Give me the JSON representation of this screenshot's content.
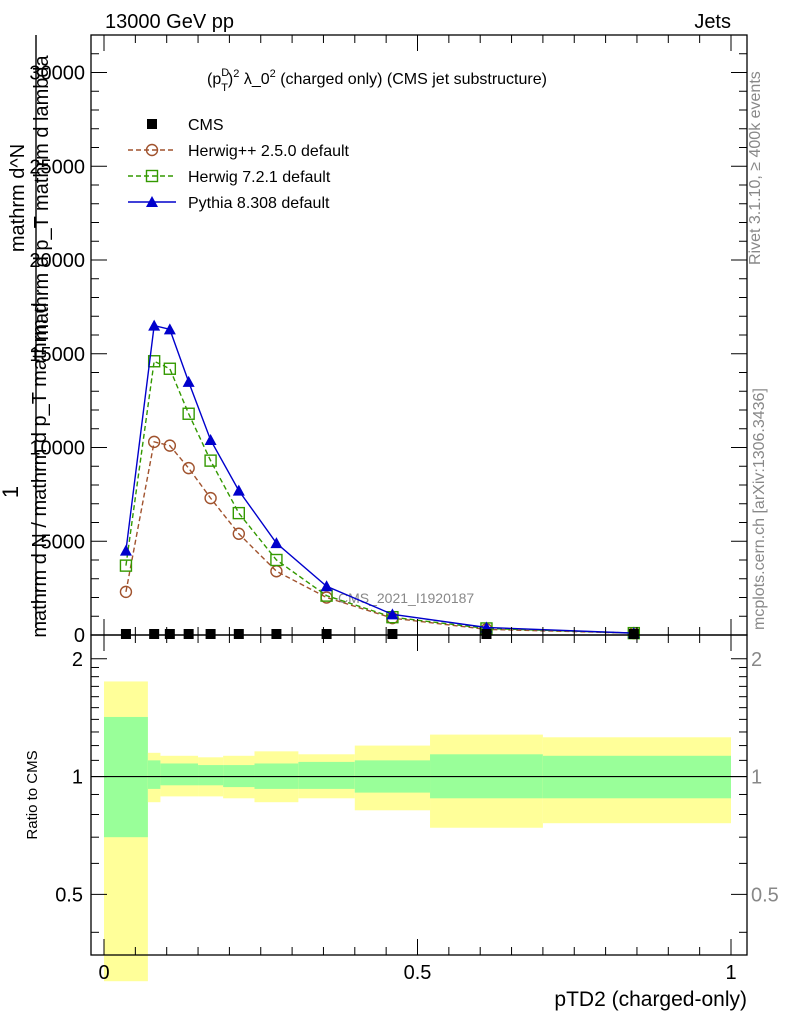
{
  "header": {
    "energy_label": "13000 GeV pp",
    "category_label": "Jets"
  },
  "side_labels": {
    "rivet": "Rivet 3.1.10, ≥ 400k events",
    "mcplots": "mcplots.cern.ch [arXiv:1306.3436]"
  },
  "chart_data": [
    {
      "type": "line",
      "title": "(p_T^D)^2 λ_0^2 (charged only) (CMS jet substructure)",
      "title_parts": {
        "p": "(p",
        "sup_d": "D",
        "sub_t": "T",
        "close": ")",
        "sup_2a": "2",
        "lam": " λ_0",
        "sup_2b": "2",
        "rest": " (charged only) (CMS jet substructure)"
      },
      "ylabel_parts": {
        "one": "1",
        "num_a": "mathrm d^N",
        "num_b": "mathrm d p_T mathrm d lambda",
        "den": "mathrm d N / mathrm d p_T mathrm d"
      },
      "xlabel": "pTD2 (charged-only)",
      "xlim": [
        0,
        1
      ],
      "ylim": [
        0,
        32000
      ],
      "yticks": [
        0,
        5000,
        10000,
        15000,
        20000,
        25000,
        30000
      ],
      "ytick_labels": [
        "0",
        "5000",
        "10000",
        "15000",
        "20000",
        "25000",
        "30000"
      ],
      "xticks": [
        0,
        0.5,
        1
      ],
      "xtick_labels": [
        "0",
        "0.5",
        "1"
      ],
      "watermark": "CMS_2021_I1920187",
      "legend": [
        "CMS",
        "Herwig++ 2.5.0 default",
        "Herwig 7.2.1 default",
        "Pythia 8.308 default"
      ],
      "legend_position": "top-left",
      "x": [
        0.035,
        0.08,
        0.105,
        0.135,
        0.17,
        0.215,
        0.275,
        0.355,
        0.46,
        0.61,
        0.845
      ],
      "series": [
        {
          "name": "CMS",
          "color": "#000000",
          "marker": "square",
          "values": [
            0,
            0,
            0,
            0,
            0,
            0,
            0,
            0,
            0,
            0,
            0
          ]
        },
        {
          "name": "Herwig++ 2.5.0 default",
          "color": "#a0522d",
          "marker": "circle",
          "dashed": true,
          "values": [
            2300,
            10300,
            10100,
            8900,
            7300,
            5400,
            3400,
            2000,
            900,
            300,
            100
          ]
        },
        {
          "name": "Herwig 7.2.1 default",
          "color": "#339900",
          "marker": "open-square",
          "dashed": true,
          "values": [
            3700,
            14600,
            14200,
            11800,
            9300,
            6500,
            4000,
            2100,
            950,
            350,
            100
          ]
        },
        {
          "name": "Pythia 8.308 default",
          "color": "#0000cc",
          "marker": "triangle",
          "dashed": false,
          "values": [
            4500,
            16500,
            16300,
            13500,
            10400,
            7700,
            4900,
            2600,
            1100,
            400,
            100
          ]
        }
      ]
    },
    {
      "type": "area",
      "ylabel": "Ratio to CMS",
      "ylim": [
        0.35,
        2.3
      ],
      "log_scale": true,
      "yticks": [
        0.5,
        1,
        2
      ],
      "ytick_labels": [
        "0.5",
        "1",
        "2"
      ],
      "reference_line": 1,
      "bins": [
        {
          "lo": 0.0,
          "hi": 0.07,
          "stat_lo": 0.7,
          "stat_hi": 1.42,
          "tot_lo": 0.3,
          "tot_hi": 1.75
        },
        {
          "lo": 0.07,
          "hi": 0.09,
          "stat_lo": 0.93,
          "stat_hi": 1.1,
          "tot_lo": 0.86,
          "tot_hi": 1.15
        },
        {
          "lo": 0.09,
          "hi": 0.15,
          "stat_lo": 0.95,
          "stat_hi": 1.08,
          "tot_lo": 0.89,
          "tot_hi": 1.13
        },
        {
          "lo": 0.15,
          "hi": 0.19,
          "stat_lo": 0.95,
          "stat_hi": 1.07,
          "tot_lo": 0.89,
          "tot_hi": 1.12
        },
        {
          "lo": 0.19,
          "hi": 0.24,
          "stat_lo": 0.94,
          "stat_hi": 1.07,
          "tot_lo": 0.88,
          "tot_hi": 1.13
        },
        {
          "lo": 0.24,
          "hi": 0.31,
          "stat_lo": 0.93,
          "stat_hi": 1.08,
          "tot_lo": 0.86,
          "tot_hi": 1.16
        },
        {
          "lo": 0.31,
          "hi": 0.4,
          "stat_lo": 0.93,
          "stat_hi": 1.09,
          "tot_lo": 0.88,
          "tot_hi": 1.14
        },
        {
          "lo": 0.4,
          "hi": 0.52,
          "stat_lo": 0.91,
          "stat_hi": 1.1,
          "tot_lo": 0.82,
          "tot_hi": 1.2
        },
        {
          "lo": 0.52,
          "hi": 0.7,
          "stat_lo": 0.88,
          "stat_hi": 1.14,
          "tot_lo": 0.74,
          "tot_hi": 1.28
        },
        {
          "lo": 0.7,
          "hi": 1.0,
          "stat_lo": 0.88,
          "stat_hi": 1.13,
          "tot_lo": 0.76,
          "tot_hi": 1.26
        }
      ],
      "stat_color": "#99ff99",
      "total_color": "#ffff99"
    }
  ]
}
